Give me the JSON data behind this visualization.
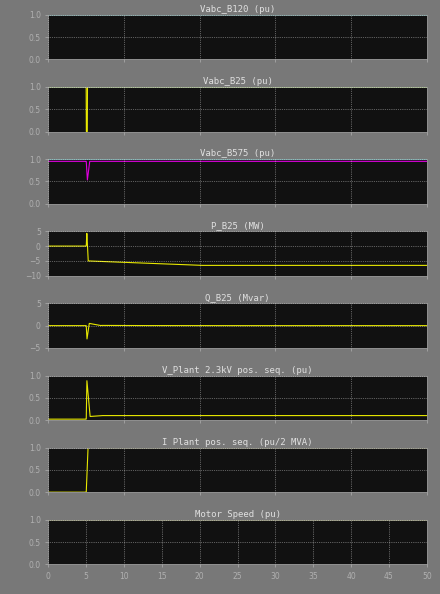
{
  "bg_color": "#111111",
  "fig_bg": "#787878",
  "title_color": "#e0e0e0",
  "tick_color": "#b0b0b0",
  "grid_color": "#ffffff",
  "line_yellow": "#e8e800",
  "line_cyan": "#00e0e0",
  "line_magenta": "#e000e0",
  "xlim": [
    0,
    50
  ],
  "fault_time": 5.0,
  "xticks": [
    0,
    5,
    10,
    15,
    20,
    25,
    30,
    35,
    40,
    45,
    50
  ],
  "plots": [
    {
      "title": "Vabc_B120 (pu)",
      "ylim": [
        0,
        1
      ],
      "yticks": [
        0,
        0.5,
        1
      ],
      "curve": "b120"
    },
    {
      "title": "Vabc_B25 (pu)",
      "ylim": [
        0,
        1
      ],
      "yticks": [
        0,
        0.5,
        1
      ],
      "curve": "b25"
    },
    {
      "title": "Vabc_B575 (pu)",
      "ylim": [
        0,
        1
      ],
      "yticks": [
        0,
        0.5,
        1
      ],
      "curve": "b575"
    },
    {
      "title": "P_B25 (MW)",
      "ylim": [
        -10,
        5
      ],
      "yticks": [
        -10,
        -5,
        0,
        5
      ],
      "curve": "p_b25"
    },
    {
      "title": "Q_B25 (Mvar)",
      "ylim": [
        -5,
        5
      ],
      "yticks": [
        -5,
        0,
        5
      ],
      "curve": "q_b25"
    },
    {
      "title": "V_Plant 2.3kV pos. seq. (pu)",
      "ylim": [
        0,
        1
      ],
      "yticks": [
        0,
        0.5,
        1
      ],
      "curve": "v_plant"
    },
    {
      "title": "I Plant pos. seq. (pu/2 MVA)",
      "ylim": [
        0,
        1
      ],
      "yticks": [
        0,
        0.5,
        1
      ],
      "curve": "i_plant"
    },
    {
      "title": "Motor Speed (pu)",
      "ylim": [
        0,
        1
      ],
      "yticks": [
        0,
        0.5,
        1
      ],
      "curve": "motor"
    }
  ]
}
